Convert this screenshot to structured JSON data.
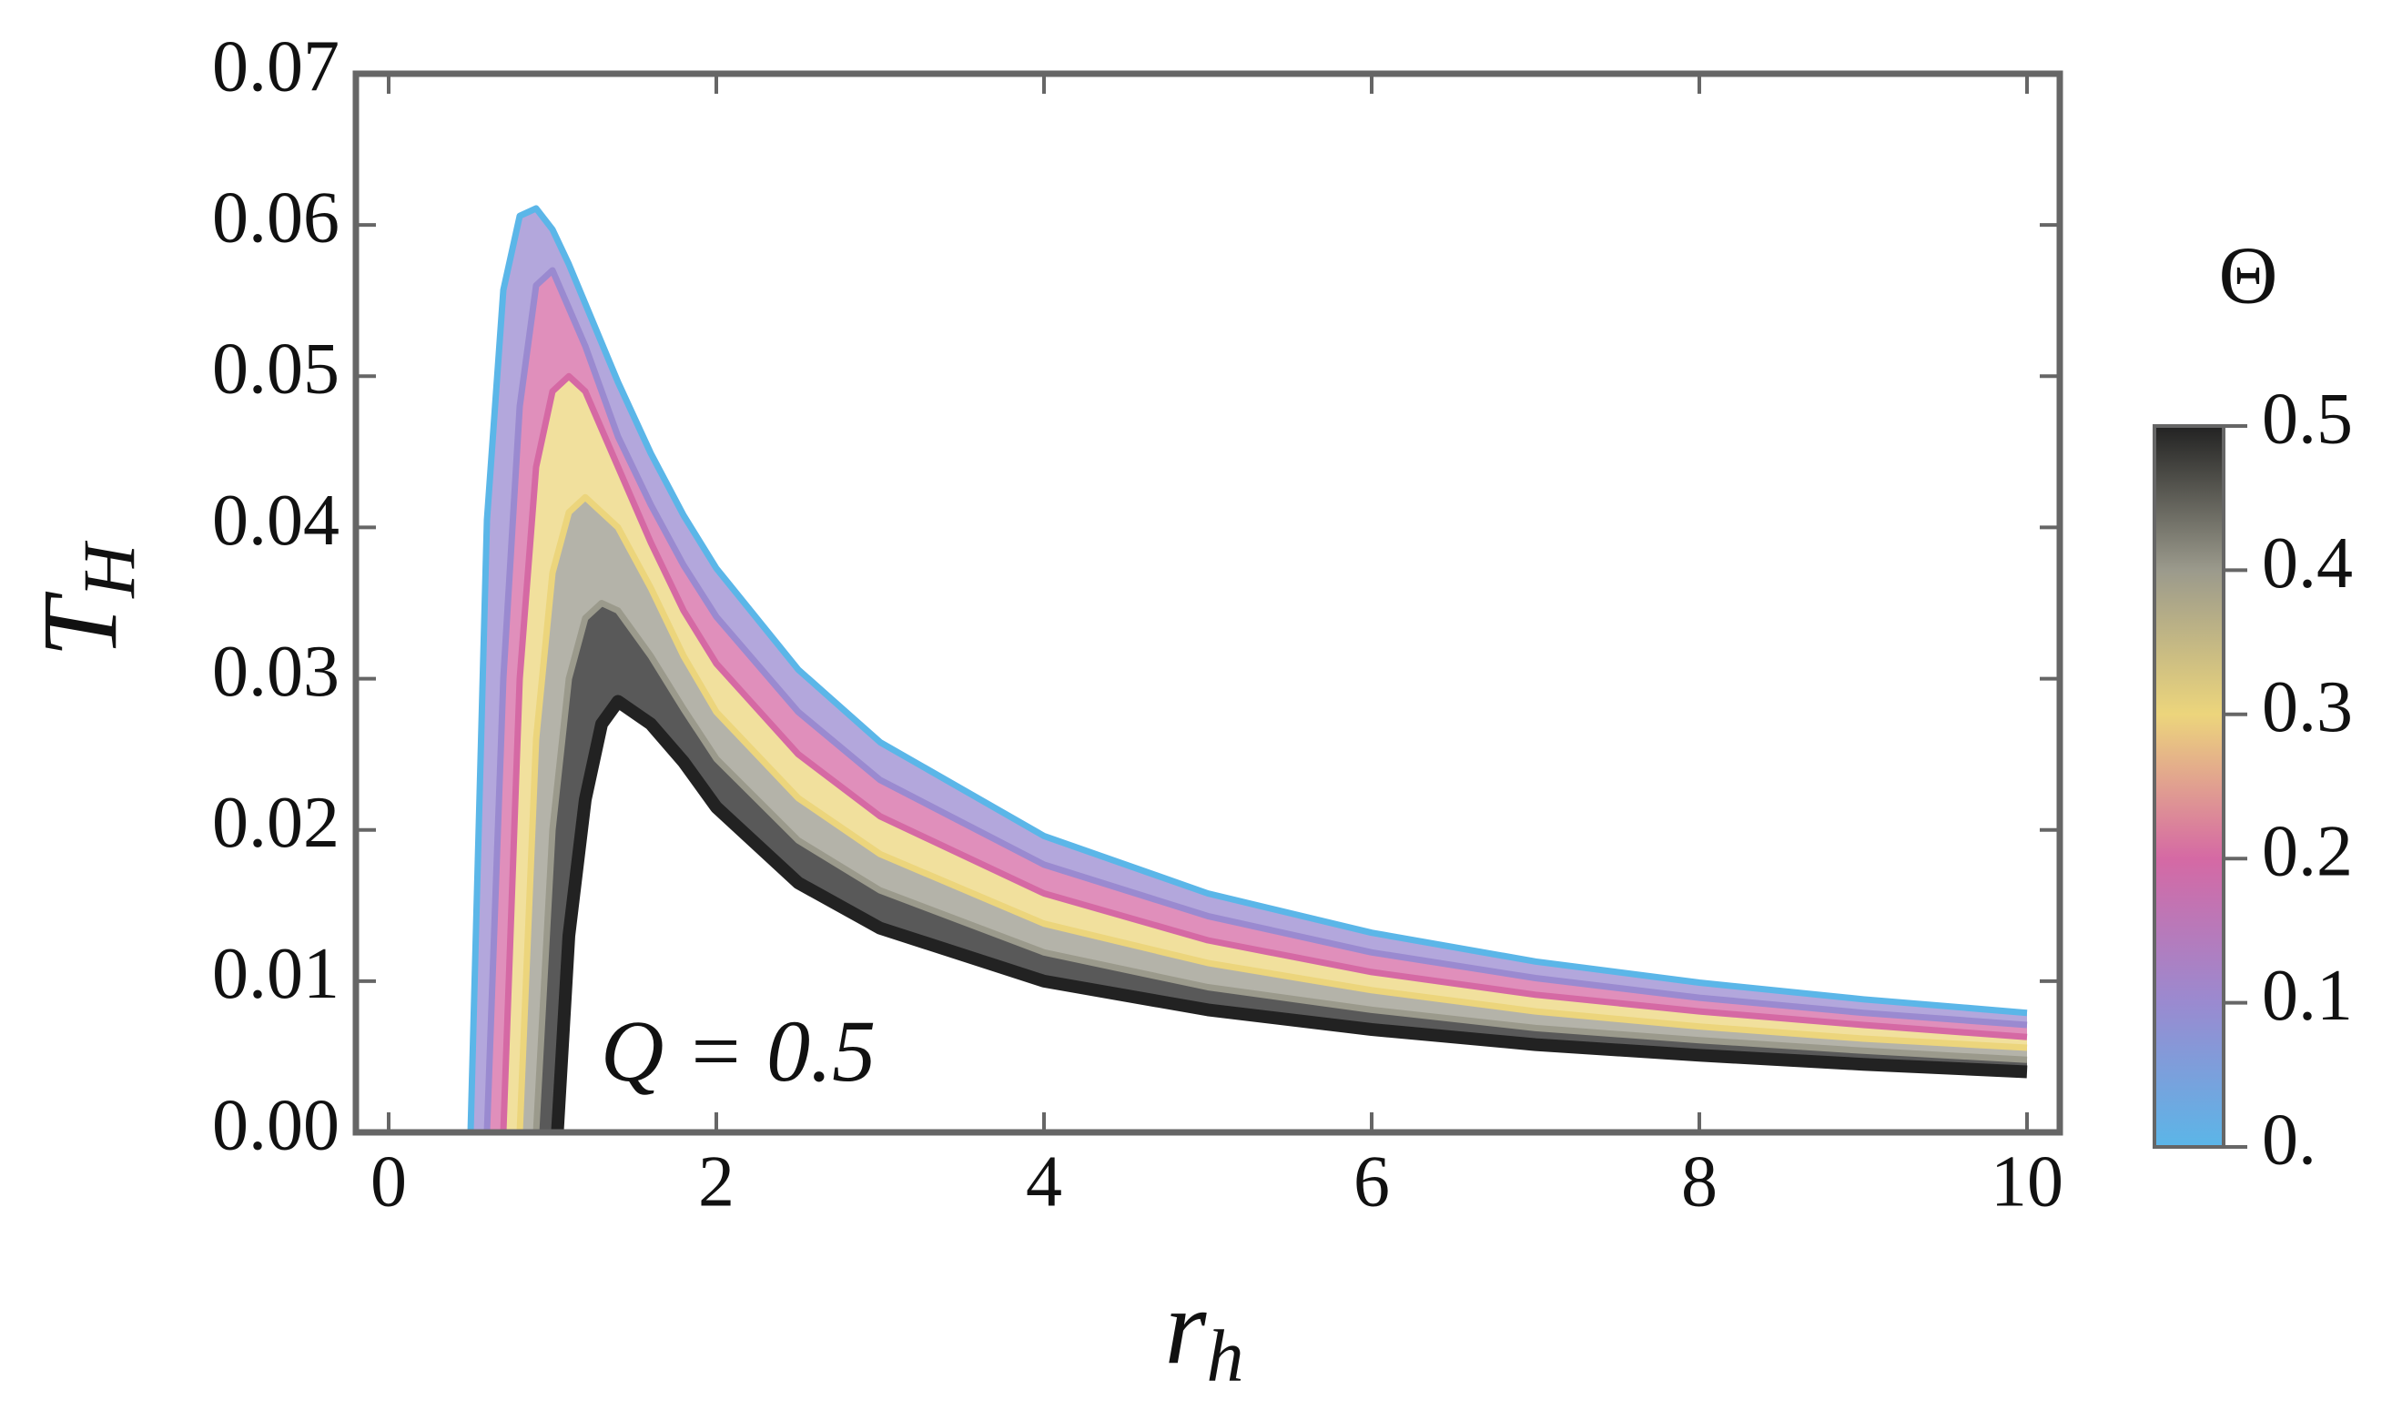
{
  "chart_data": {
    "type": "line",
    "x_label": "r",
    "x_label_subscript": "h",
    "y_label": "T",
    "y_label_subscript": "H",
    "annotation": "Q = 0.5",
    "xlim": [
      -0.2,
      10.2
    ],
    "ylim": [
      0,
      0.07
    ],
    "xticks": [
      0,
      2,
      4,
      6,
      8,
      10
    ],
    "yticks": [
      {
        "value": 0,
        "label": "0.00"
      },
      {
        "value": 0.01,
        "label": "0.01"
      },
      {
        "value": 0.02,
        "label": "0.02"
      },
      {
        "value": 0.03,
        "label": "0.03"
      },
      {
        "value": 0.04,
        "label": "0.04"
      },
      {
        "value": 0.05,
        "label": "0.05"
      },
      {
        "value": 0.06,
        "label": "0.06"
      },
      {
        "value": 0.07,
        "label": "0.07"
      }
    ],
    "colorbar": {
      "title": "Θ",
      "clim": [
        0,
        0.5
      ],
      "ticks": [
        {
          "value": 0,
          "label": "0."
        },
        0.1,
        0.2,
        0.3,
        0.4,
        0.5
      ]
    },
    "series": [
      {
        "color": "#5bb6e8",
        "x": [
          0.5,
          0.6,
          0.7,
          0.8,
          0.9,
          1.0,
          1.1,
          1.2,
          1.4,
          1.6,
          1.8,
          2,
          2.5,
          3,
          4,
          5,
          6,
          7,
          8,
          9,
          10
        ],
        "values": [
          0,
          0.0405,
          0.0557,
          0.0606,
          0.0611,
          0.0597,
          0.0574,
          0.0548,
          0.0496,
          0.0449,
          0.0408,
          0.0373,
          0.0306,
          0.0258,
          0.0196,
          0.0158,
          0.0132,
          0.0113,
          0.0099,
          0.0088,
          0.0079
        ]
      },
      {
        "color": "#9a8ad0",
        "x": [
          0.6,
          0.7,
          0.8,
          0.9,
          1.0,
          1.2,
          1.4,
          1.6,
          1.8,
          2,
          2.5,
          3,
          4,
          5,
          6,
          7,
          8,
          9,
          10
        ],
        "values": [
          0,
          0.03,
          0.048,
          0.056,
          0.057,
          0.052,
          0.046,
          0.0415,
          0.0375,
          0.0341,
          0.0278,
          0.0233,
          0.0177,
          0.0143,
          0.0119,
          0.0102,
          0.0089,
          0.0079,
          0.0071
        ]
      },
      {
        "color": "#d569a4",
        "x": [
          0.7,
          0.8,
          0.9,
          1.0,
          1.1,
          1.2,
          1.4,
          1.6,
          1.8,
          2,
          2.5,
          3,
          4,
          5,
          6,
          7,
          8,
          9,
          10
        ],
        "values": [
          0,
          0.03,
          0.044,
          0.049,
          0.05,
          0.049,
          0.044,
          0.039,
          0.0345,
          0.031,
          0.025,
          0.0209,
          0.0158,
          0.0127,
          0.0106,
          0.0091,
          0.008,
          0.0071,
          0.0063
        ]
      },
      {
        "color": "#ecd57c",
        "x": [
          0.8,
          0.9,
          1.0,
          1.1,
          1.2,
          1.4,
          1.6,
          1.8,
          2,
          2.5,
          3,
          4,
          5,
          6,
          7,
          8,
          9,
          10
        ],
        "values": [
          0,
          0.026,
          0.037,
          0.041,
          0.042,
          0.04,
          0.036,
          0.0315,
          0.0278,
          0.0221,
          0.0184,
          0.0138,
          0.0112,
          0.0094,
          0.008,
          0.007,
          0.0062,
          0.0056
        ]
      },
      {
        "color": "#9b9a8c",
        "x": [
          0.9,
          1.0,
          1.1,
          1.2,
          1.3,
          1.4,
          1.6,
          1.8,
          2,
          2.5,
          3,
          4,
          5,
          6,
          7,
          8,
          9,
          10
        ],
        "values": [
          0,
          0.02,
          0.03,
          0.034,
          0.035,
          0.0345,
          0.0315,
          0.028,
          0.0247,
          0.0193,
          0.016,
          0.0119,
          0.0096,
          0.0081,
          0.0069,
          0.0061,
          0.0054,
          0.0048
        ]
      },
      {
        "color": "#222222",
        "x": [
          1.03,
          1.1,
          1.2,
          1.3,
          1.4,
          1.6,
          1.8,
          2,
          2.5,
          3,
          4,
          5,
          6,
          7,
          8,
          9,
          10
        ],
        "values": [
          0,
          0.013,
          0.022,
          0.027,
          0.0285,
          0.027,
          0.0245,
          0.0215,
          0.0165,
          0.0135,
          0.01,
          0.0081,
          0.0068,
          0.0058,
          0.0051,
          0.0045,
          0.004
        ]
      }
    ]
  }
}
